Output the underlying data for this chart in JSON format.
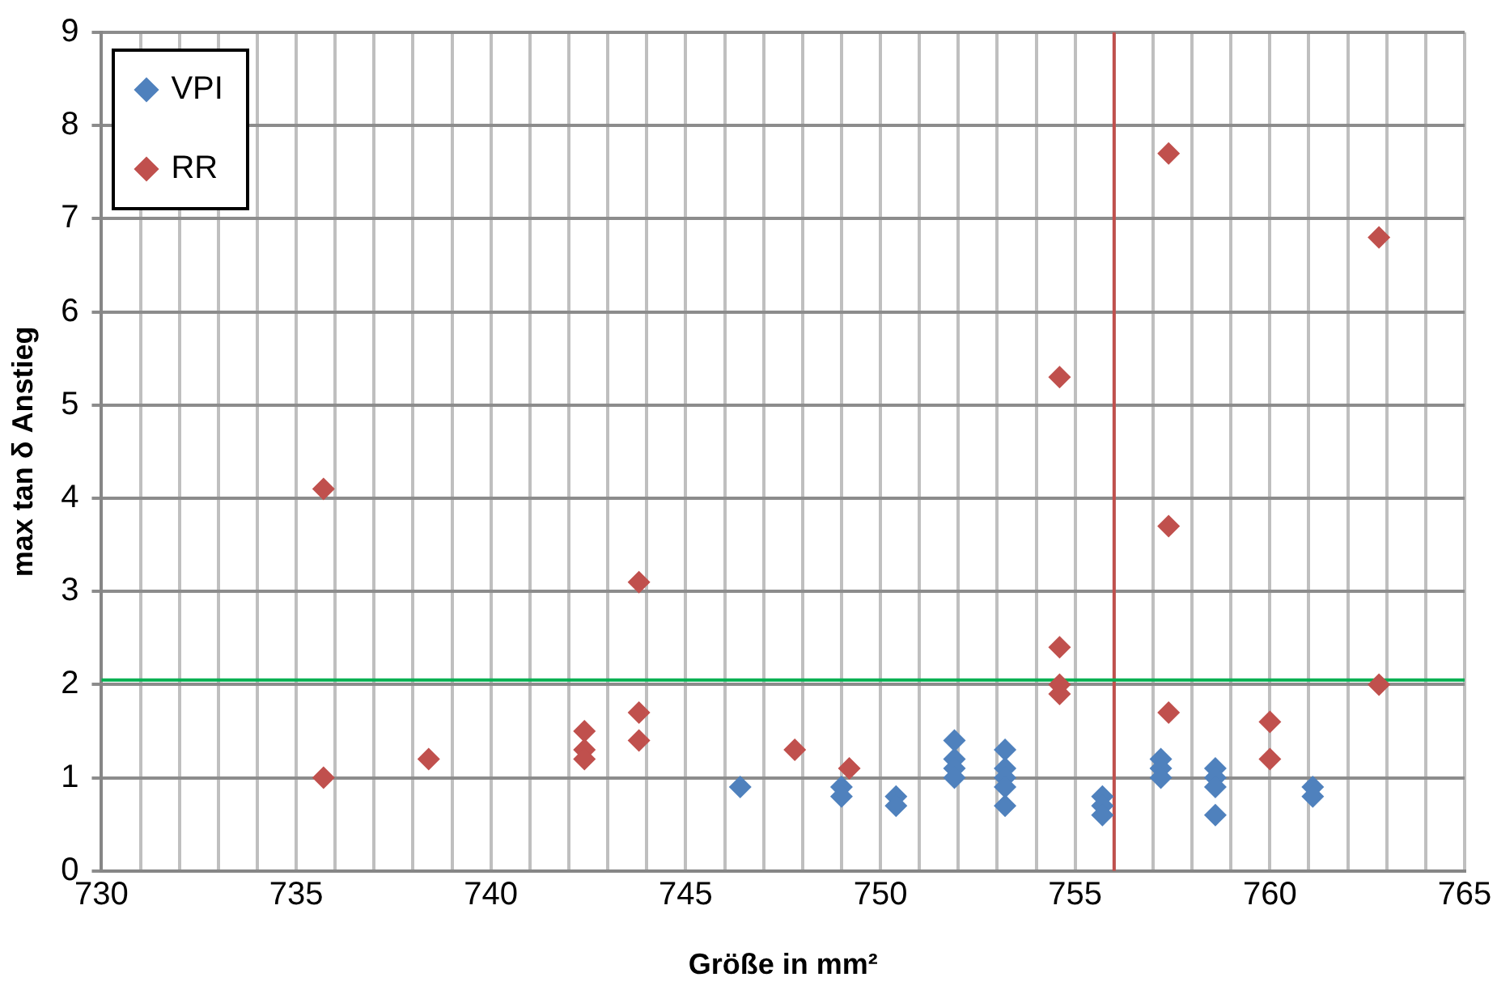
{
  "chart_data": {
    "type": "scatter",
    "xlabel": "Größe in mm²",
    "ylabel": "max tan δ Anstieg",
    "xlim": [
      730,
      765
    ],
    "ylim": [
      0,
      9
    ],
    "xticks": [
      730,
      {
        "value": 731,
        "label": null
      },
      {
        "value": 732,
        "label": null
      },
      {
        "value": 733,
        "label": null
      },
      {
        "value": 734,
        "label": null
      },
      735,
      {
        "value": 736,
        "label": null
      },
      {
        "value": 737,
        "label": null
      },
      {
        "value": 738,
        "label": null
      },
      {
        "value": 739,
        "label": null
      },
      740,
      {
        "value": 741,
        "label": null
      },
      {
        "value": 742,
        "label": null
      },
      {
        "value": 743,
        "label": null
      },
      {
        "value": 744,
        "label": null
      },
      745,
      {
        "value": 746,
        "label": null
      },
      {
        "value": 747,
        "label": null
      },
      {
        "value": 748,
        "label": null
      },
      {
        "value": 749,
        "label": null
      },
      750,
      {
        "value": 751,
        "label": null
      },
      {
        "value": 752,
        "label": null
      },
      {
        "value": 753,
        "label": null
      },
      {
        "value": 754,
        "label": null
      },
      755,
      {
        "value": 756,
        "label": null
      },
      {
        "value": 757,
        "label": null
      },
      {
        "value": 758,
        "label": null
      },
      {
        "value": 759,
        "label": null
      },
      760,
      {
        "value": 761,
        "label": null
      },
      {
        "value": 762,
        "label": null
      },
      {
        "value": 763,
        "label": null
      },
      {
        "value": 764,
        "label": null
      },
      765
    ],
    "yticks": [
      0,
      1,
      2,
      3,
      4,
      5,
      6,
      7,
      8,
      9
    ],
    "grid": true,
    "legend": "top left",
    "marker": "diamond",
    "series": [
      {
        "name": "VPI",
        "color": "#4f81bd",
        "x": [
          746.4,
          749,
          749,
          750.4,
          750.4,
          751.9,
          751.9,
          751.9,
          751.9,
          753.2,
          753.2,
          753.2,
          753.2,
          753.2,
          755.7,
          755.7,
          755.7,
          757.2,
          757.2,
          757.2,
          758.6,
          758.6,
          758.6,
          758.6,
          761.1,
          761.1
        ],
        "values": [
          0.9,
          0.9,
          0.8,
          0.8,
          0.7,
          1.4,
          1.2,
          1.1,
          1.0,
          1.3,
          1.1,
          1.0,
          0.9,
          0.7,
          0.8,
          0.7,
          0.6,
          1.2,
          1.1,
          1.0,
          1.1,
          1.0,
          0.9,
          0.6,
          0.9,
          0.8
        ]
      },
      {
        "name": "RR",
        "color": "#c0504d",
        "x": [
          735.7,
          735.7,
          738.4,
          742.4,
          742.4,
          742.4,
          743.8,
          743.8,
          743.8,
          747.8,
          749.2,
          754.6,
          754.6,
          754.6,
          754.6,
          757.4,
          757.4,
          757.4,
          760,
          760,
          762.8,
          762.8
        ],
        "values": [
          4.1,
          1.0,
          1.2,
          1.5,
          1.3,
          1.2,
          3.1,
          1.7,
          1.4,
          1.3,
          1.1,
          5.3,
          2.4,
          2.0,
          1.9,
          7.7,
          3.7,
          1.7,
          1.6,
          1.2,
          6.8,
          2.0
        ]
      }
    ],
    "ref_lines": [
      {
        "axis": "x",
        "value": 756,
        "color": "#c0504d"
      },
      {
        "axis": "y",
        "value": 2.05,
        "color": "#00b050"
      }
    ]
  }
}
